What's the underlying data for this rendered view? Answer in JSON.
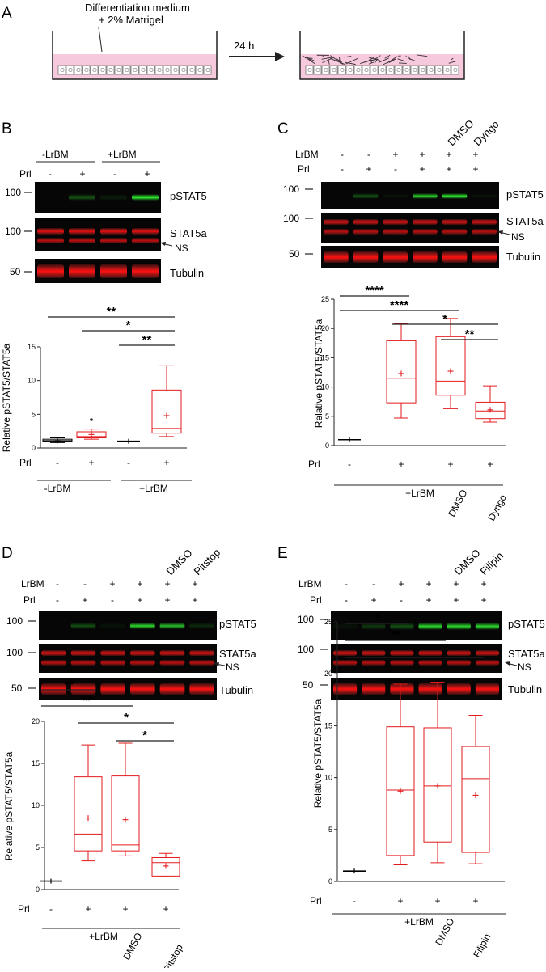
{
  "panels": {
    "A": {
      "letter": "A",
      "medium_line1": "Differentiation medium",
      "medium_line2": "+ 2% Matrigel",
      "time": "24 h"
    },
    "B": {
      "letter": "B",
      "groups": [
        "-LrBM",
        "+LrBM"
      ],
      "prl_label": "Prl",
      "prl_signs": [
        "-",
        "+",
        "-",
        "+"
      ],
      "blot_labels": [
        "pSTAT5",
        "STAT5a",
        "NS",
        "Tubulin"
      ],
      "mw": [
        "100",
        "100",
        "50"
      ]
    },
    "C": {
      "letter": "C",
      "lrbm_label": "LrBM",
      "prl_label": "Prl",
      "lrbm_signs": [
        "-",
        "-",
        "+",
        "+",
        "+",
        "+"
      ],
      "prl_signs": [
        "-",
        "+",
        "-",
        "+",
        "+",
        "+"
      ],
      "top_labels": [
        "DMSO",
        "Dyngo"
      ],
      "blot_labels": [
        "pSTAT5",
        "STAT5a",
        "NS",
        "Tubulin"
      ],
      "mw": [
        "100",
        "100",
        "50"
      ]
    },
    "D": {
      "letter": "D",
      "lrbm_label": "LrBM",
      "prl_label": "Prl",
      "lrbm_signs": [
        "-",
        "-",
        "+",
        "+",
        "+",
        "+"
      ],
      "prl_signs": [
        "-",
        "+",
        "-",
        "+",
        "+",
        "+"
      ],
      "top_labels": [
        "DMSO",
        "Pitstop"
      ],
      "blot_labels": [
        "pSTAT5",
        "STAT5a",
        "NS",
        "Tubulin"
      ],
      "mw": [
        "100",
        "100",
        "50"
      ]
    },
    "E": {
      "letter": "E",
      "lrbm_label": "LrBM",
      "prl_label": "Prl",
      "lrbm_signs": [
        "-",
        "-",
        "+",
        "+",
        "+",
        "+"
      ],
      "prl_signs": [
        "-",
        "+",
        "-",
        "+",
        "+",
        "+"
      ],
      "top_labels": [
        "DMSO",
        "Filipin"
      ],
      "blot_labels": [
        "pSTAT5",
        "STAT5a",
        "NS",
        "Tubulin"
      ],
      "mw": [
        "100",
        "100",
        "50"
      ]
    }
  },
  "chart_data": [
    {
      "panel": "B",
      "type": "box",
      "ylabel": "Relative pSTAT5/STAT5a",
      "ylim": [
        0,
        15
      ],
      "yticks": [
        0,
        5,
        10,
        15
      ],
      "prl_label": "Prl",
      "prl_signs": [
        "-",
        "+",
        "-",
        "+"
      ],
      "group_labels": [
        "-LrBM",
        "+LrBM"
      ],
      "boxes": [
        {
          "color": "#000000",
          "min": 0.8,
          "q1": 1.0,
          "median": 1.1,
          "q3": 1.3,
          "max": 1.5,
          "mean": 1.1
        },
        {
          "color": "#e31a1c",
          "min": 1.3,
          "q1": 1.5,
          "median": 1.7,
          "q3": 2.4,
          "max": 2.8,
          "mean": 2.0,
          "outliers": [
            4.2
          ]
        },
        {
          "color": "#000000",
          "min": 1.0,
          "q1": 1.0,
          "median": 1.0,
          "q3": 1.0,
          "max": 1.0,
          "mean": 1.0
        },
        {
          "color": "#e31a1c",
          "min": 1.7,
          "q1": 2.2,
          "median": 2.9,
          "q3": 8.6,
          "max": 12.2,
          "mean": 4.8
        }
      ],
      "significance": [
        {
          "from": 0,
          "to": 3,
          "label": "**"
        },
        {
          "from": 1,
          "to": 3,
          "label": "*"
        },
        {
          "from": 2,
          "to": 3,
          "label": "**"
        }
      ]
    },
    {
      "panel": "C",
      "type": "box",
      "ylabel": "Relative pSTAT5/STAT5a",
      "ylim": [
        0,
        25
      ],
      "yticks": [
        0,
        5,
        10,
        15,
        20,
        25
      ],
      "prl_label": "Prl",
      "prl_signs": [
        "-",
        "+",
        "+",
        "+"
      ],
      "group_labels": [
        "+LrBM"
      ],
      "x_labels": [
        "",
        "",
        "DMSO",
        "Dyngo"
      ],
      "boxes": [
        {
          "color": "#000000",
          "min": 1.0,
          "q1": 1.0,
          "median": 1.0,
          "q3": 1.0,
          "max": 1.0,
          "mean": 1.0
        },
        {
          "color": "#e31a1c",
          "min": 4.7,
          "q1": 7.3,
          "median": 11.5,
          "q3": 17.9,
          "max": 20.8,
          "mean": 12.3
        },
        {
          "color": "#e31a1c",
          "min": 6.3,
          "q1": 8.6,
          "median": 11.0,
          "q3": 18.6,
          "max": 21.7,
          "mean": 12.7
        },
        {
          "color": "#e31a1c",
          "min": 4.0,
          "q1": 4.6,
          "median": 5.9,
          "q3": 7.4,
          "max": 10.2,
          "mean": 6.1
        }
      ],
      "significance": [
        {
          "from": 0,
          "to": 1,
          "label": "****"
        },
        {
          "from": 0,
          "to": 2,
          "label": "****"
        },
        {
          "from": 1,
          "to": 3,
          "label": "*"
        },
        {
          "from": 2,
          "to": 3,
          "label": "**"
        }
      ]
    },
    {
      "panel": "D",
      "type": "box",
      "ylabel": "Relative pSTAT5/STAT5a",
      "ylim": [
        0,
        20
      ],
      "yticks": [
        0,
        5,
        10,
        15,
        20
      ],
      "prl_label": "Prl",
      "prl_signs": [
        "-",
        "+",
        "+",
        "+"
      ],
      "group_labels": [
        "+LrBM"
      ],
      "x_labels": [
        "",
        "",
        "DMSO",
        "Pitstop"
      ],
      "boxes": [
        {
          "color": "#000000",
          "min": 1.0,
          "q1": 1.0,
          "median": 1.0,
          "q3": 1.0,
          "max": 1.0,
          "mean": 1.0
        },
        {
          "color": "#e31a1c",
          "min": 3.4,
          "q1": 4.6,
          "median": 6.6,
          "q3": 13.4,
          "max": 17.2,
          "mean": 8.5
        },
        {
          "color": "#e31a1c",
          "min": 4.0,
          "q1": 4.6,
          "median": 5.3,
          "q3": 13.5,
          "max": 17.4,
          "mean": 8.3
        },
        {
          "color": "#e31a1c",
          "min": 1.5,
          "q1": 1.6,
          "median": 3.2,
          "q3": 3.8,
          "max": 4.3,
          "mean": 2.8
        }
      ],
      "significance": [
        {
          "from": 0,
          "to": 1,
          "label": "**"
        },
        {
          "from": 0,
          "to": 2,
          "label": "**"
        },
        {
          "from": 1,
          "to": 3,
          "label": "*"
        },
        {
          "from": 2,
          "to": 3,
          "label": "*"
        }
      ]
    },
    {
      "panel": "E",
      "type": "box",
      "ylabel": "Relative pSTAT5/STAT5a",
      "ylim": [
        0,
        25
      ],
      "yticks": [
        0,
        5,
        10,
        15,
        20,
        25
      ],
      "prl_label": "Prl",
      "prl_signs": [
        "-",
        "+",
        "+",
        "+"
      ],
      "group_labels": [
        "+LrBM"
      ],
      "x_labels": [
        "",
        "",
        "DMSO",
        "Filipin"
      ],
      "boxes": [
        {
          "color": "#000000",
          "min": 1.0,
          "q1": 1.0,
          "median": 1.0,
          "q3": 1.0,
          "max": 1.0,
          "mean": 1.0
        },
        {
          "color": "#e31a1c",
          "min": 1.6,
          "q1": 2.5,
          "median": 8.8,
          "q3": 14.9,
          "max": 19.0,
          "mean": 8.7
        },
        {
          "color": "#e31a1c",
          "min": 1.8,
          "q1": 3.8,
          "median": 9.2,
          "q3": 14.8,
          "max": 19.2,
          "mean": 9.2
        },
        {
          "color": "#e31a1c",
          "min": 1.7,
          "q1": 2.8,
          "median": 9.9,
          "q3": 13.0,
          "max": 16.0,
          "mean": 8.3
        }
      ],
      "significance": [
        {
          "from": 0,
          "to": 1,
          "label": "*"
        },
        {
          "from": 0,
          "to": 2,
          "label": "**"
        },
        {
          "from": 0,
          "to": 3,
          "label": "*"
        }
      ]
    }
  ]
}
